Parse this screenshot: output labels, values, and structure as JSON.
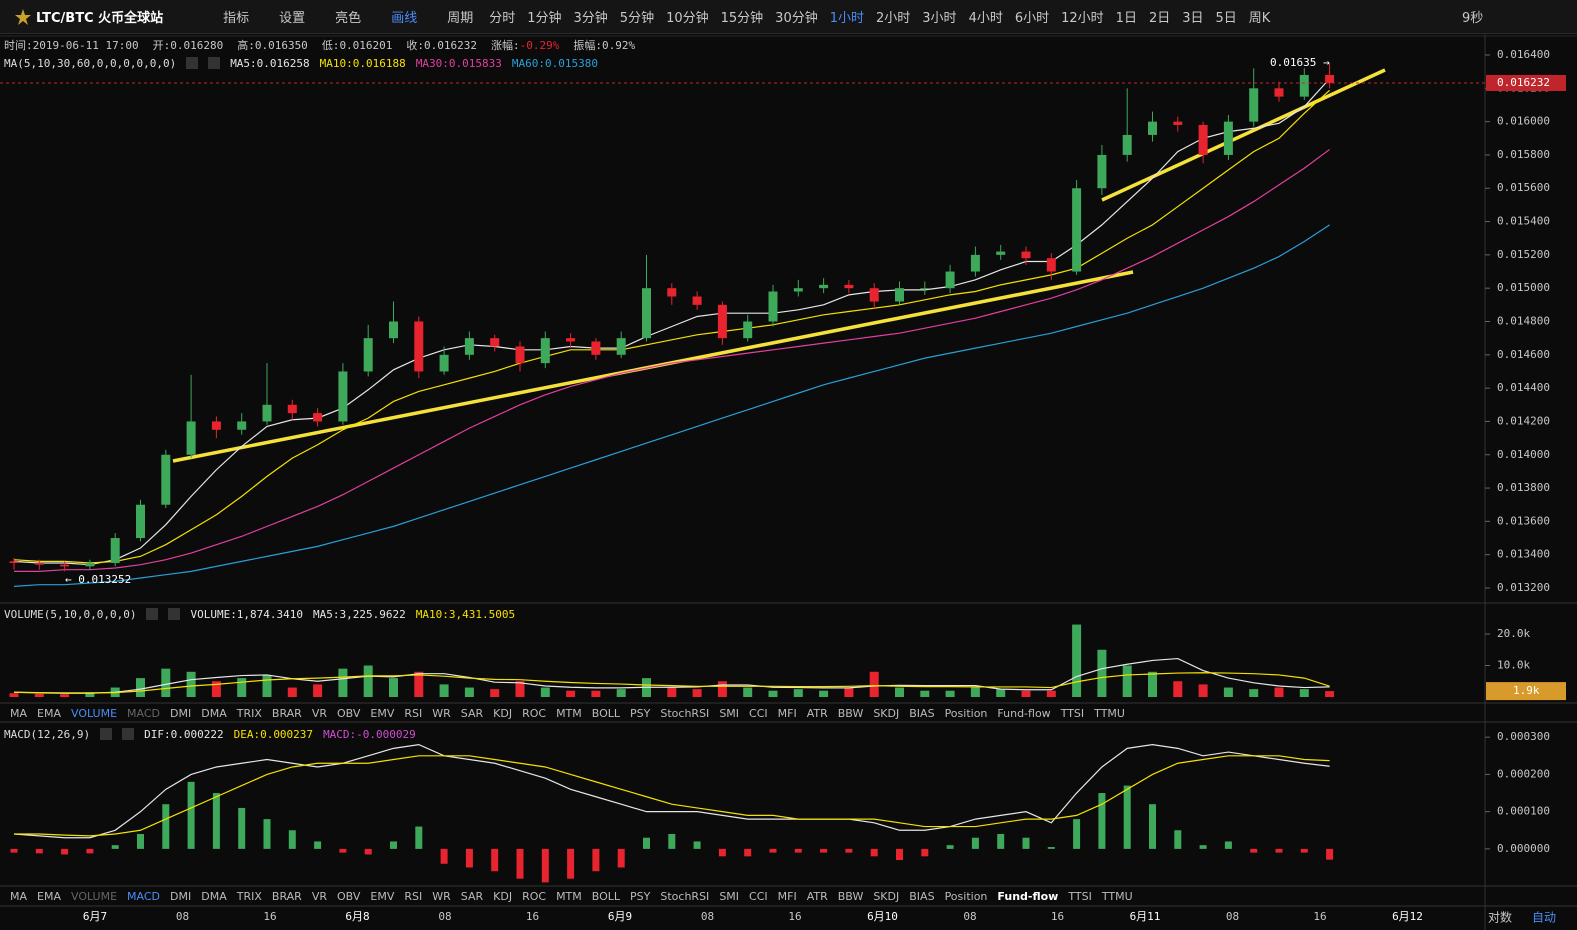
{
  "toolbar": {
    "symbol": "LTC/BTC 火币全球站",
    "tools": [
      "指标",
      "设置",
      "亮色",
      "画线"
    ],
    "period_label": "周期",
    "periods": [
      "分时",
      "1分钟",
      "3分钟",
      "5分钟",
      "10分钟",
      "15分钟",
      "30分钟",
      "1小时",
      "2小时",
      "3小时",
      "4小时",
      "6小时",
      "12小时",
      "1日",
      "2日",
      "3日",
      "5日",
      "周K"
    ],
    "active_period": 7,
    "refresh": "9秒"
  },
  "info": [
    {
      "label": "时间:",
      "value": "2019-06-11 17:00"
    },
    {
      "label": "开:",
      "value": "0.016280"
    },
    {
      "label": "高:",
      "value": "0.016350"
    },
    {
      "label": "低:",
      "value": "0.016201"
    },
    {
      "label": "收:",
      "value": "0.016232"
    },
    {
      "label": "涨幅:",
      "value": "-0.29%",
      "color": "#e8242f"
    },
    {
      "label": "振幅:",
      "value": "0.92%"
    }
  ],
  "indicator_tabs": [
    "MA",
    "EMA",
    "VOLUME",
    "MACD",
    "DMI",
    "DMA",
    "TRIX",
    "BRAR",
    "VR",
    "OBV",
    "EMV",
    "RSI",
    "WR",
    "SAR",
    "KDJ",
    "ROC",
    "MTM",
    "BOLL",
    "PSY",
    "StochRSI",
    "SMI",
    "CCI",
    "MFI",
    "ATR",
    "BBW",
    "SKDJ",
    "BIAS",
    "Position",
    "Fund-flow",
    "TTSI",
    "TTMU"
  ],
  "x_axis": {
    "labels": [
      "6月7",
      "08",
      "16",
      "6月8",
      "08",
      "16",
      "6月9",
      "08",
      "16",
      "6月10",
      "08",
      "16",
      "6月11",
      "08",
      "16",
      "6月12"
    ]
  },
  "axis_buttons": [
    "对数",
    "自动"
  ],
  "chart_data": [
    {
      "type": "candlestick",
      "legend_title": "MA(5,10,30,60,0,0,0,0,0,0)",
      "up_color": "#3ea85b",
      "down_color": "#e8242f",
      "high_note": "0.01635 →",
      "low_note": "← 0.013252",
      "last_price": {
        "value": 0.016232,
        "label": "0.016232"
      },
      "ylim": [
        0.013128,
        0.01649
      ],
      "yticks": [
        {
          "value": 0.0164,
          "label": "0.016400"
        },
        {
          "value": 0.0162,
          "label": "0.016200"
        },
        {
          "value": 0.016,
          "label": "0.016000"
        },
        {
          "value": 0.0158,
          "label": "0.015800"
        },
        {
          "value": 0.0156,
          "label": "0.015600"
        },
        {
          "value": 0.0154,
          "label": "0.015400"
        },
        {
          "value": 0.0152,
          "label": "0.015200"
        },
        {
          "value": 0.015,
          "label": "0.015000"
        },
        {
          "value": 0.0148,
          "label": "0.014800"
        },
        {
          "value": 0.0146,
          "label": "0.014600"
        },
        {
          "value": 0.0144,
          "label": "0.014400"
        },
        {
          "value": 0.0142,
          "label": "0.014200"
        },
        {
          "value": 0.014,
          "label": "0.014000"
        },
        {
          "value": 0.0138,
          "label": "0.013800"
        },
        {
          "value": 0.0136,
          "label": "0.013600"
        },
        {
          "value": 0.0134,
          "label": "0.013400"
        },
        {
          "value": 0.0132,
          "label": "0.013200"
        }
      ],
      "open": [
        0.01336,
        0.01335,
        0.01334,
        0.01333,
        0.01335,
        0.0135,
        0.0137,
        0.014,
        0.0142,
        0.01415,
        0.0142,
        0.0143,
        0.01425,
        0.0142,
        0.0145,
        0.0147,
        0.0148,
        0.0145,
        0.0146,
        0.0147,
        0.01465,
        0.01455,
        0.0147,
        0.01468,
        0.0146,
        0.0147,
        0.015,
        0.01495,
        0.0149,
        0.0147,
        0.0148,
        0.01498,
        0.015,
        0.01502,
        0.015,
        0.01492,
        0.015,
        0.015,
        0.0151,
        0.0152,
        0.01522,
        0.01518,
        0.0151,
        0.0156,
        0.0158,
        0.01592,
        0.016,
        0.01598,
        0.0158,
        0.016,
        0.0162,
        0.01615,
        0.01628
      ],
      "high": [
        0.01338,
        0.01337,
        0.01336,
        0.01337,
        0.01353,
        0.01373,
        0.01403,
        0.01448,
        0.01423,
        0.01425,
        0.01455,
        0.01433,
        0.01428,
        0.01455,
        0.01478,
        0.01492,
        0.01483,
        0.01465,
        0.01474,
        0.01472,
        0.01468,
        0.01474,
        0.01473,
        0.0147,
        0.01474,
        0.0152,
        0.01503,
        0.01498,
        0.01492,
        0.01484,
        0.01502,
        0.01505,
        0.01506,
        0.01505,
        0.01503,
        0.01504,
        0.01504,
        0.01514,
        0.01525,
        0.01526,
        0.01525,
        0.01521,
        0.01565,
        0.01586,
        0.0162,
        0.01606,
        0.01603,
        0.016,
        0.01604,
        0.01632,
        0.01624,
        0.01632,
        0.01635
      ],
      "low": [
        0.01331,
        0.01331,
        0.0133,
        0.01331,
        0.01333,
        0.01348,
        0.01368,
        0.01398,
        0.0141,
        0.01412,
        0.01418,
        0.01421,
        0.01417,
        0.01418,
        0.01447,
        0.01467,
        0.01446,
        0.01448,
        0.01457,
        0.01462,
        0.0145,
        0.01452,
        0.01464,
        0.01457,
        0.01458,
        0.01468,
        0.0149,
        0.01487,
        0.01466,
        0.01468,
        0.01477,
        0.01495,
        0.01497,
        0.01497,
        0.01488,
        0.0149,
        0.01496,
        0.01497,
        0.01507,
        0.01517,
        0.01514,
        0.01505,
        0.01508,
        0.01556,
        0.01576,
        0.01588,
        0.01594,
        0.01575,
        0.01577,
        0.01597,
        0.01612,
        0.01613,
        0.016201
      ],
      "close": [
        0.01335,
        0.01334,
        0.01333,
        0.01335,
        0.0135,
        0.0137,
        0.014,
        0.0142,
        0.01415,
        0.0142,
        0.0143,
        0.01425,
        0.0142,
        0.0145,
        0.0147,
        0.0148,
        0.0145,
        0.0146,
        0.0147,
        0.01465,
        0.01455,
        0.0147,
        0.01468,
        0.0146,
        0.0147,
        0.015,
        0.01495,
        0.0149,
        0.0147,
        0.0148,
        0.01498,
        0.015,
        0.01502,
        0.015,
        0.01492,
        0.015,
        0.015,
        0.0151,
        0.0152,
        0.01522,
        0.01518,
        0.0151,
        0.0156,
        0.0158,
        0.01592,
        0.016,
        0.01598,
        0.0158,
        0.016,
        0.0162,
        0.01615,
        0.01628,
        0.016232
      ],
      "series": [
        {
          "name": "MA5:0.016258",
          "color": "#e6e6e6",
          "values": [
            0.01336,
            0.01335,
            0.01335,
            0.01334,
            0.01337,
            0.01344,
            0.01358,
            0.01375,
            0.01391,
            0.01405,
            0.01417,
            0.01421,
            0.01422,
            0.01428,
            0.01439,
            0.01451,
            0.01458,
            0.01463,
            0.01466,
            0.01465,
            0.01463,
            0.01463,
            0.01465,
            0.01464,
            0.01464,
            0.01471,
            0.01477,
            0.01483,
            0.01485,
            0.01485,
            0.01485,
            0.01487,
            0.0149,
            0.01496,
            0.01498,
            0.01499,
            0.01499,
            0.01501,
            0.01505,
            0.01511,
            0.01516,
            0.01516,
            0.01526,
            0.01538,
            0.01552,
            0.01566,
            0.01582,
            0.0159,
            0.01594,
            0.01596,
            0.01599,
            0.01609,
            0.016258
          ]
        },
        {
          "name": "MA10:0.016188",
          "color": "#f5e100",
          "values": [
            0.01337,
            0.01336,
            0.01336,
            0.01335,
            0.01336,
            0.01339,
            0.01346,
            0.01355,
            0.01364,
            0.01375,
            0.01387,
            0.01398,
            0.01406,
            0.01415,
            0.01422,
            0.01432,
            0.01438,
            0.01442,
            0.01446,
            0.0145,
            0.01455,
            0.01459,
            0.01463,
            0.01463,
            0.01463,
            0.01466,
            0.01469,
            0.01472,
            0.01474,
            0.01476,
            0.01478,
            0.01481,
            0.01484,
            0.01486,
            0.01488,
            0.0149,
            0.01493,
            0.01496,
            0.01498,
            0.01502,
            0.01505,
            0.01508,
            0.01512,
            0.01521,
            0.0153,
            0.01538,
            0.01549,
            0.0156,
            0.01571,
            0.01582,
            0.0159,
            0.01605,
            0.016188
          ]
        },
        {
          "name": "MA30:0.015833",
          "color": "#e0409e",
          "values": [
            0.0133,
            0.0133,
            0.01331,
            0.01331,
            0.01332,
            0.01334,
            0.01337,
            0.01341,
            0.01346,
            0.01351,
            0.01357,
            0.01363,
            0.01369,
            0.01376,
            0.01384,
            0.01392,
            0.014,
            0.01408,
            0.01416,
            0.01423,
            0.0143,
            0.01436,
            0.01441,
            0.01445,
            0.01449,
            0.01452,
            0.01455,
            0.01457,
            0.01459,
            0.01461,
            0.01463,
            0.01465,
            0.01467,
            0.01469,
            0.01471,
            0.01473,
            0.01476,
            0.01479,
            0.01482,
            0.01486,
            0.0149,
            0.01494,
            0.01499,
            0.01505,
            0.01512,
            0.01519,
            0.01527,
            0.01535,
            0.01543,
            0.01552,
            0.01562,
            0.01572,
            0.015833
          ]
        },
        {
          "name": "MA60:0.015380",
          "color": "#2a9fd6",
          "values": [
            0.01321,
            0.01322,
            0.01322,
            0.01323,
            0.01324,
            0.01326,
            0.01328,
            0.0133,
            0.01333,
            0.01336,
            0.01339,
            0.01342,
            0.01345,
            0.01349,
            0.01353,
            0.01357,
            0.01362,
            0.01367,
            0.01372,
            0.01377,
            0.01382,
            0.01387,
            0.01392,
            0.01397,
            0.01402,
            0.01407,
            0.01412,
            0.01417,
            0.01422,
            0.01427,
            0.01432,
            0.01437,
            0.01442,
            0.01446,
            0.0145,
            0.01454,
            0.01458,
            0.01461,
            0.01464,
            0.01467,
            0.0147,
            0.01473,
            0.01477,
            0.01481,
            0.01485,
            0.0149,
            0.01495,
            0.015,
            0.01506,
            0.01512,
            0.01519,
            0.01528,
            0.01538
          ]
        }
      ]
    },
    {
      "type": "volume",
      "legend_title": "VOLUME(5,10,0,0,0,0)",
      "active_tab": 2,
      "ylim": [
        -317,
        29206
      ],
      "yticks": [
        {
          "value": 20000,
          "label": "20.0k"
        },
        {
          "value": 10000,
          "label": "10.0k"
        }
      ],
      "last_volume": {
        "value": 1874.341,
        "label": "1.9k"
      },
      "series": [
        {
          "name": "VOLUME:1,874.3410",
          "color": "#e6e6e6",
          "values": [
            1200,
            1000,
            900,
            1500,
            3000,
            6000,
            9000,
            8000,
            5000,
            6000,
            7000,
            3000,
            4000,
            9000,
            10000,
            6000,
            8000,
            4000,
            3000,
            2500,
            5000,
            3000,
            2000,
            2000,
            2500,
            6000,
            3000,
            2500,
            5000,
            3000,
            2000,
            2500,
            2000,
            3000,
            8000,
            3000,
            2000,
            2000,
            3000,
            2500,
            2000,
            2000,
            23000,
            15000,
            10000,
            8000,
            5000,
            4000,
            3000,
            2500,
            3000,
            2500,
            1874.341
          ]
        },
        {
          "name": "MA5:3,225.9622",
          "color": "#e6e6e6",
          "values": [
            1500,
            1300,
            1200,
            1200,
            1500,
            2500,
            4000,
            5500,
            6200,
            6800,
            7000,
            5800,
            5000,
            5800,
            6600,
            6400,
            7400,
            7400,
            6200,
            4700,
            4500,
            3500,
            3100,
            2900,
            2900,
            3100,
            3100,
            3200,
            3800,
            3800,
            3100,
            3000,
            2900,
            2900,
            3500,
            3700,
            3600,
            3600,
            3600,
            2500,
            2300,
            2300,
            6500,
            9000,
            10400,
            11600,
            12200,
            8400,
            6000,
            4500,
            3500,
            3000,
            3225.9622
          ]
        },
        {
          "name": "MA10:3,431.5005",
          "color": "#f5e100",
          "values": [
            1500,
            1400,
            1300,
            1300,
            1400,
            1900,
            2700,
            3500,
            4000,
            4700,
            5400,
            5800,
            6000,
            6300,
            6700,
            6700,
            7000,
            6600,
            6000,
            5600,
            5500,
            5000,
            4600,
            4300,
            4100,
            3800,
            3600,
            3400,
            3400,
            3400,
            3400,
            3300,
            3300,
            3400,
            3600,
            3400,
            3300,
            3300,
            3200,
            3200,
            3200,
            3000,
            4800,
            6200,
            7000,
            7300,
            7600,
            7700,
            7600,
            7400,
            7000,
            6000,
            3431.5005
          ]
        }
      ]
    },
    {
      "type": "macd",
      "legend_title": "MACD(12,26,9)",
      "active_tab": 3,
      "ylim": [
        -9.7e-05,
        0.000322
      ],
      "yticks": [
        {
          "value": 0.0003,
          "label": "0.000300"
        },
        {
          "value": 0.0002,
          "label": "0.000200"
        },
        {
          "value": 0.0001,
          "label": "0.000100"
        },
        {
          "value": 0,
          "label": "0.000000"
        }
      ],
      "series": [
        {
          "name": "DIF:0.000222",
          "color": "#e6e6e6",
          "values": [
            4e-05,
            3.5e-05,
            3e-05,
            3e-05,
            5e-05,
            0.0001,
            0.00016,
            0.0002,
            0.00022,
            0.00023,
            0.00024,
            0.00023,
            0.00022,
            0.00023,
            0.00025,
            0.00027,
            0.00028,
            0.00025,
            0.00024,
            0.00023,
            0.00021,
            0.00019,
            0.00016,
            0.00014,
            0.00012,
            0.0001,
            0.0001,
            0.0001,
            9e-05,
            8e-05,
            8e-05,
            8e-05,
            8e-05,
            8e-05,
            7e-05,
            5e-05,
            5e-05,
            6e-05,
            8e-05,
            9e-05,
            0.0001,
            7e-05,
            0.00015,
            0.00022,
            0.00027,
            0.00028,
            0.00027,
            0.00025,
            0.00026,
            0.00025,
            0.00024,
            0.00023,
            0.000222
          ]
        },
        {
          "name": "DEA:0.000237",
          "color": "#f5e100",
          "values": [
            4e-05,
            4e-05,
            3.7e-05,
            3.5e-05,
            4e-05,
            5e-05,
            8e-05,
            0.00011,
            0.00014,
            0.00017,
            0.0002,
            0.00022,
            0.00023,
            0.00023,
            0.00023,
            0.00024,
            0.00025,
            0.00025,
            0.00025,
            0.00024,
            0.00023,
            0.00022,
            0.0002,
            0.00018,
            0.00016,
            0.00014,
            0.00012,
            0.00011,
            0.0001,
            9e-05,
            9e-05,
            8e-05,
            8e-05,
            8e-05,
            8e-05,
            7e-05,
            6e-05,
            6e-05,
            6e-05,
            7e-05,
            8e-05,
            8e-05,
            9e-05,
            0.00012,
            0.00016,
            0.0002,
            0.00023,
            0.00024,
            0.00025,
            0.00025,
            0.00025,
            0.00024,
            0.000237
          ]
        },
        {
          "name": "MACD:-0.000029",
          "color": "#d04dd0",
          "values": [
            -1e-05,
            -1.2e-05,
            -1.5e-05,
            -1.2e-05,
            1e-05,
            4e-05,
            0.00012,
            0.00018,
            0.00015,
            0.00011,
            8e-05,
            5e-05,
            2e-05,
            -1e-05,
            -1.5e-05,
            2e-05,
            6e-05,
            -4e-05,
            -5e-05,
            -6e-05,
            -8e-05,
            -9e-05,
            -8e-05,
            -6e-05,
            -5e-05,
            3e-05,
            4e-05,
            2e-05,
            -2e-05,
            -2e-05,
            -1e-05,
            -1e-05,
            -1e-05,
            -1e-05,
            -2e-05,
            -3e-05,
            -2e-05,
            1e-05,
            3e-05,
            4e-05,
            3e-05,
            5e-06,
            8e-05,
            0.00015,
            0.00017,
            0.00012,
            5e-05,
            1e-05,
            2e-05,
            -1e-05,
            -1e-05,
            -1e-05,
            -2.9e-05
          ]
        }
      ]
    }
  ]
}
